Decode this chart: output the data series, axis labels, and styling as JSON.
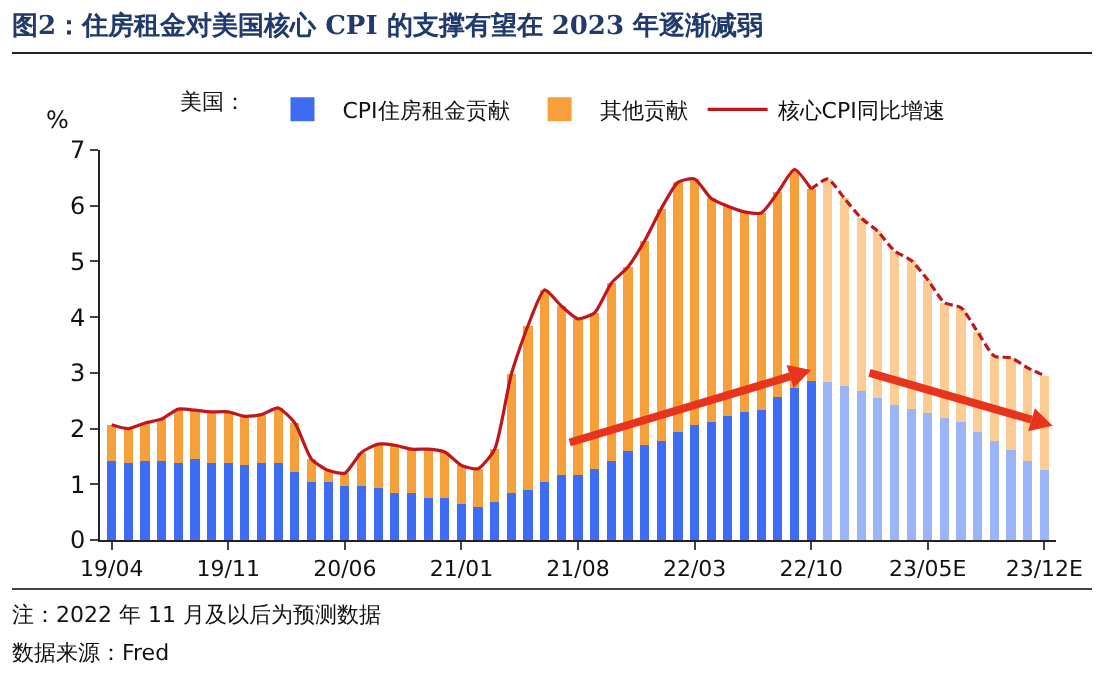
{
  "chart_data": {
    "type": "bar",
    "title": "图2：住房租金对美国核心 CPI 的支撑有望在 2023 年逐渐减弱",
    "ylabel": "%",
    "legend_title": "美国：",
    "categories": [
      "19/04",
      null,
      null,
      null,
      null,
      null,
      null,
      "19/11",
      null,
      null,
      null,
      null,
      null,
      null,
      "20/06",
      null,
      null,
      null,
      null,
      null,
      null,
      "21/01",
      null,
      null,
      null,
      null,
      null,
      null,
      "21/08",
      null,
      null,
      null,
      null,
      null,
      null,
      "22/03",
      null,
      null,
      null,
      null,
      null,
      null,
      "22/10",
      null,
      null,
      null,
      null,
      null,
      null,
      "23/05E",
      null,
      null,
      null,
      null,
      null,
      null,
      "23/12E"
    ],
    "stacked": true,
    "ylim": [
      0,
      7
    ],
    "yticks": [
      0,
      1,
      2,
      3,
      4,
      5,
      6,
      7
    ],
    "grid": false,
    "legend": "top",
    "series": [
      {
        "name": "CPI住房租金贡献",
        "colors": [
          "#3e6cf2",
          "#3e6cf2",
          "#3e6cf2",
          "#3e6cf2",
          "#3e6cf2",
          "#3e6cf2",
          "#3e6cf2",
          "#3e6cf2",
          "#3e6cf2",
          "#3e6cf2",
          "#3e6cf2",
          "#3e6cf2",
          "#3e6cf2",
          "#3e6cf2",
          "#3e6cf2",
          "#3e6cf2",
          "#3e6cf2",
          "#3e6cf2",
          "#3e6cf2",
          "#3e6cf2",
          "#3e6cf2",
          "#3e6cf2",
          "#3e6cf2",
          "#3e6cf2",
          "#3e6cf2",
          "#3e6cf2",
          "#3e6cf2",
          "#3e6cf2",
          "#3e6cf2",
          "#3e6cf2",
          "#3e6cf2",
          "#3e6cf2",
          "#3e6cf2",
          "#3e6cf2",
          "#3e6cf2",
          "#3e6cf2",
          "#3e6cf2",
          "#3e6cf2",
          "#3e6cf2",
          "#3e6cf2",
          "#3e6cf2",
          "#3e6cf2",
          "#3e6cf2",
          "#9bb4f7",
          "#9bb4f7",
          "#9bb4f7",
          "#9bb4f7",
          "#9bb4f7",
          "#9bb4f7",
          "#9bb4f7",
          "#9bb4f7",
          "#9bb4f7",
          "#9bb4f7",
          "#9bb4f7",
          "#9bb4f7",
          "#9bb4f7",
          "#9bb4f7"
        ],
        "values": [
          1.42,
          1.38,
          1.42,
          1.42,
          1.38,
          1.45,
          1.38,
          1.38,
          1.35,
          1.38,
          1.38,
          1.22,
          1.05,
          1.05,
          0.97,
          0.97,
          0.93,
          0.85,
          0.85,
          0.76,
          0.76,
          0.64,
          0.6,
          0.68,
          0.84,
          0.89,
          1.04,
          1.17,
          1.17,
          1.28,
          1.42,
          1.59,
          1.7,
          1.77,
          1.94,
          2.07,
          2.11,
          2.23,
          2.3,
          2.33,
          2.57,
          2.72,
          2.86,
          2.84,
          2.77,
          2.68,
          2.54,
          2.43,
          2.36,
          2.28,
          2.19,
          2.12,
          1.93,
          1.77,
          1.61,
          1.42,
          1.25
        ]
      },
      {
        "name": "其他贡献",
        "colors": [
          "#f5a03a",
          "#f5a03a",
          "#f5a03a",
          "#f5a03a",
          "#f5a03a",
          "#f5a03a",
          "#f5a03a",
          "#f5a03a",
          "#f5a03a",
          "#f5a03a",
          "#f5a03a",
          "#f5a03a",
          "#f5a03a",
          "#f5a03a",
          "#f5a03a",
          "#f5a03a",
          "#f5a03a",
          "#f5a03a",
          "#f5a03a",
          "#f5a03a",
          "#f5a03a",
          "#f5a03a",
          "#f5a03a",
          "#f5a03a",
          "#f5a03a",
          "#f5a03a",
          "#f5a03a",
          "#f5a03a",
          "#f5a03a",
          "#f5a03a",
          "#f5a03a",
          "#f5a03a",
          "#f5a03a",
          "#f5a03a",
          "#f5a03a",
          "#f5a03a",
          "#f5a03a",
          "#f5a03a",
          "#f5a03a",
          "#f5a03a",
          "#f5a03a",
          "#f5a03a",
          "#f5a03a",
          "#fbcd94",
          "#fbcd94",
          "#fbcd94",
          "#fbcd94",
          "#fbcd94",
          "#fbcd94",
          "#fbcd94",
          "#fbcd94",
          "#fbcd94",
          "#fbcd94",
          "#fbcd94",
          "#fbcd94",
          "#fbcd94",
          "#fbcd94"
        ],
        "values": [
          0.65,
          0.62,
          0.68,
          0.75,
          0.97,
          0.88,
          0.92,
          0.92,
          0.87,
          0.87,
          0.99,
          0.88,
          0.4,
          0.2,
          0.23,
          0.6,
          0.79,
          0.85,
          0.78,
          0.87,
          0.82,
          0.7,
          0.68,
          0.95,
          2.14,
          2.96,
          3.45,
          3.03,
          2.8,
          2.8,
          3.19,
          3.31,
          3.67,
          4.18,
          4.48,
          4.41,
          4.02,
          3.76,
          3.59,
          3.54,
          3.67,
          3.93,
          3.44,
          3.64,
          3.36,
          3.1,
          3.0,
          2.76,
          2.66,
          2.39,
          2.07,
          2.05,
          1.8,
          1.53,
          1.66,
          1.67,
          1.7
        ]
      },
      {
        "name": "核心CPI同比增速",
        "type": "line",
        "line_style": "solid",
        "color": "#c0161d",
        "values": [
          2.07,
          2.0,
          2.1,
          2.17,
          2.35,
          2.33,
          2.3,
          2.3,
          2.22,
          2.25,
          2.37,
          2.1,
          1.45,
          1.25,
          1.2,
          1.57,
          1.72,
          1.7,
          1.63,
          1.63,
          1.58,
          1.34,
          1.28,
          1.63,
          2.98,
          3.85,
          4.49,
          4.2,
          3.97,
          4.08,
          4.61,
          4.9,
          5.37,
          5.95,
          6.42,
          6.48,
          6.13,
          5.99,
          5.89,
          5.87,
          6.24,
          6.65,
          6.3,
          null,
          null,
          null,
          null,
          null,
          null,
          null,
          null,
          null,
          null,
          null,
          null,
          null,
          null
        ]
      },
      {
        "type": "line",
        "line_style": "dashed",
        "color": "#c0161d",
        "values": [
          null,
          null,
          null,
          null,
          null,
          null,
          null,
          null,
          null,
          null,
          null,
          null,
          null,
          null,
          null,
          null,
          null,
          null,
          null,
          null,
          null,
          null,
          null,
          null,
          null,
          null,
          null,
          null,
          null,
          null,
          null,
          null,
          null,
          null,
          null,
          null,
          null,
          null,
          null,
          null,
          null,
          null,
          6.3,
          6.48,
          6.13,
          5.78,
          5.54,
          5.19,
          5.02,
          4.67,
          4.26,
          4.17,
          3.73,
          3.3,
          3.27,
          3.09,
          2.95
        ]
      }
    ],
    "annotations": [
      "注：2022 年 11 月及以后为预测数据",
      "数据来源：Fred"
    ]
  }
}
